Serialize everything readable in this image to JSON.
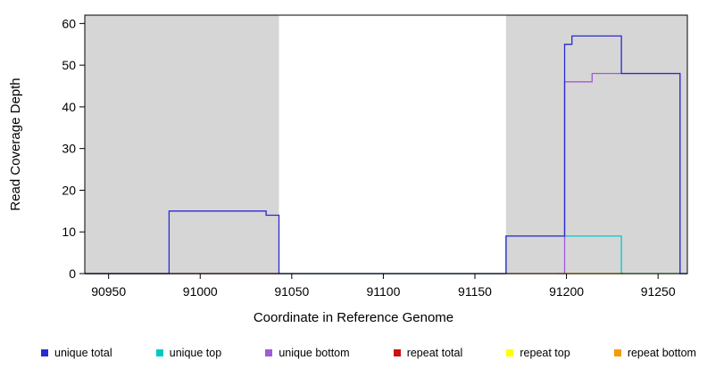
{
  "chart_data": {
    "type": "line",
    "title": "",
    "xlabel": "Coordinate in Reference Genome",
    "ylabel": "Read Coverage Depth",
    "xlim": [
      90937,
      91266
    ],
    "ylim": [
      0,
      62
    ],
    "xticks": [
      90950,
      91000,
      91050,
      91100,
      91150,
      91200,
      91250
    ],
    "yticks": [
      0,
      10,
      20,
      30,
      40,
      50,
      60
    ],
    "grid": false,
    "legend_position": "bottom",
    "shaded_regions": [
      {
        "name": "repeat-region-left",
        "x0": 90937,
        "x1": 91043,
        "color": "#d6d6d6"
      },
      {
        "name": "repeat-region-right",
        "x0": 91167,
        "x1": 91266,
        "color": "#d6d6d6"
      }
    ],
    "series": [
      {
        "name": "repeat top",
        "color": "#ffff00",
        "segments": [
          [
            [
              90937,
              0
            ],
            [
              91266,
              0
            ]
          ]
        ]
      },
      {
        "name": "unique top",
        "color": "#00c9c9",
        "segments": [
          [
            [
              90937,
              0
            ],
            [
              91167,
              9
            ],
            [
              91230,
              0
            ],
            [
              91266,
              0
            ]
          ]
        ]
      },
      {
        "name": "unique bottom",
        "color": "#a259d8",
        "segments": [
          [
            [
              90937,
              0
            ],
            [
              91199,
              46
            ],
            [
              91214,
              48
            ],
            [
              91262,
              0
            ],
            [
              91266,
              0
            ]
          ]
        ]
      },
      {
        "name": "repeat total",
        "color": "#cc1111",
        "segments": [
          [
            [
              90937,
              0
            ],
            [
              91043,
              0
            ]
          ]
        ]
      },
      {
        "name": "repeat bottom",
        "color": "#f59b00",
        "segments": [
          [
            [
              91195,
              0
            ],
            [
              91232,
              0
            ]
          ]
        ]
      },
      {
        "name": "unique total",
        "color": "#2a2ad0",
        "segments": [
          [
            [
              90937,
              0
            ],
            [
              90983,
              15
            ],
            [
              91036,
              14
            ],
            [
              91043,
              0
            ],
            [
              91167,
              9
            ],
            [
              91199,
              55
            ],
            [
              91203,
              57
            ],
            [
              91230,
              48
            ],
            [
              91262,
              0
            ],
            [
              91266,
              0
            ]
          ]
        ]
      }
    ],
    "legend": [
      {
        "label": "unique total",
        "color": "#2a2ad0"
      },
      {
        "label": "unique top",
        "color": "#00c9c9"
      },
      {
        "label": "unique bottom",
        "color": "#a259d8"
      },
      {
        "label": "repeat total",
        "color": "#cc1111"
      },
      {
        "label": "repeat top",
        "color": "#ffff00"
      },
      {
        "label": "repeat bottom",
        "color": "#f59b00"
      }
    ]
  }
}
